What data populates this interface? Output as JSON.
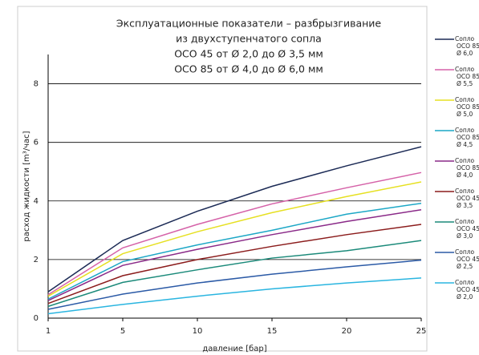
{
  "chart_data": {
    "type": "line",
    "title": [
      "Эксплуатационные показатели – разбрызгивание",
      "из двухступенчатого сопла",
      "OCO 45 от Ø 2,0 до Ø 3,5 мм",
      "OCO 85 от Ø 4,0 до Ø 6,0 мм"
    ],
    "x_label": "давление [бар]",
    "y_label": "расход жидкости [m³/час]",
    "categories": [
      "1",
      "5",
      "10",
      "15",
      "20",
      "25"
    ],
    "ylim": [
      0,
      9
    ],
    "yticks": [
      0,
      2,
      4,
      6,
      8
    ],
    "grid": true,
    "series": [
      {
        "name": [
          "Сопло",
          "OCO 85",
          "Ø 6,0"
        ],
        "color": "#1b2a55",
        "values": [
          0.9,
          2.65,
          3.65,
          4.5,
          5.2,
          5.85
        ]
      },
      {
        "name": [
          "Сопло",
          "OCO 85",
          "Ø 5,5"
        ],
        "color": "#d562a8",
        "values": [
          0.8,
          2.4,
          3.2,
          3.9,
          4.45,
          4.97
        ]
      },
      {
        "name": [
          "Сопло",
          "OCO 85",
          "Ø 5,0"
        ],
        "color": "#e6e022",
        "values": [
          0.75,
          2.2,
          2.95,
          3.6,
          4.15,
          4.65
        ]
      },
      {
        "name": [
          "Сопло",
          "OCO 85",
          "Ø 4,5"
        ],
        "color": "#1ca7c6",
        "values": [
          0.65,
          1.93,
          2.5,
          3.0,
          3.55,
          3.92
        ]
      },
      {
        "name": [
          "Сопло",
          "OCO 85",
          "Ø 4,0"
        ],
        "color": "#8a2a88",
        "values": [
          0.6,
          1.8,
          2.35,
          2.85,
          3.3,
          3.7
        ]
      },
      {
        "name": [
          "Сопло",
          "OCO 45",
          "Ø 3,5"
        ],
        "color": "#8b1c1c",
        "values": [
          0.5,
          1.45,
          2.0,
          2.45,
          2.85,
          3.2
        ]
      },
      {
        "name": [
          "Сопло",
          "OCO 45",
          "Ø 3,0"
        ],
        "color": "#1b8a7a",
        "values": [
          0.4,
          1.22,
          1.65,
          2.05,
          2.3,
          2.65
        ]
      },
      {
        "name": [
          "Сопло",
          "OCO 45",
          "Ø 2,5"
        ],
        "color": "#2b5aa6",
        "values": [
          0.3,
          0.82,
          1.2,
          1.5,
          1.75,
          1.98
        ]
      },
      {
        "name": [
          "Сопло",
          "OCO 45",
          "Ø 2,0"
        ],
        "color": "#2ab5e0",
        "values": [
          0.15,
          0.47,
          0.75,
          1.0,
          1.2,
          1.37
        ]
      }
    ]
  }
}
